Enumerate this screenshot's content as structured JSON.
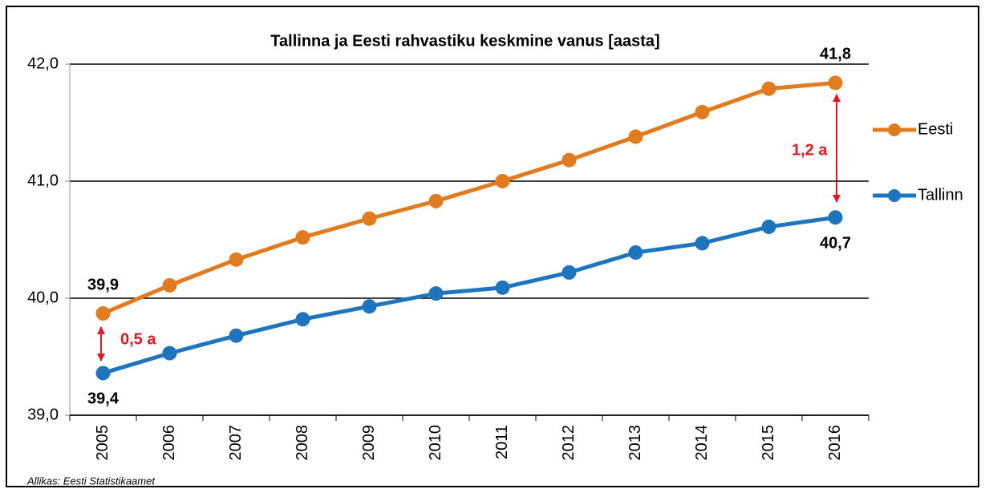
{
  "chart_data": {
    "type": "line",
    "title": "Tallinna ja Eesti rahvastiku keskmine vanus [aasta]",
    "categories": [
      "2005",
      "2006",
      "2007",
      "2008",
      "2009",
      "2010",
      "2011",
      "2012",
      "2013",
      "2014",
      "2015",
      "2016"
    ],
    "series": [
      {
        "name": "Eesti",
        "color": "#e07b1f",
        "values": [
          39.87,
          40.11,
          40.33,
          40.52,
          40.68,
          40.83,
          41.0,
          41.18,
          41.38,
          41.59,
          41.79,
          41.84
        ],
        "value_labels": [
          "39,9",
          null,
          null,
          null,
          null,
          null,
          null,
          null,
          null,
          null,
          null,
          "41,8"
        ]
      },
      {
        "name": "Tallinn",
        "color": "#1f75bd",
        "values": [
          39.36,
          39.53,
          39.68,
          39.82,
          39.93,
          40.04,
          40.09,
          40.22,
          40.39,
          40.47,
          40.61,
          40.69
        ],
        "value_labels": [
          "39,4",
          null,
          null,
          null,
          null,
          null,
          null,
          null,
          null,
          null,
          null,
          "40,7"
        ]
      }
    ],
    "ylim": [
      39,
      42
    ],
    "yticks": [
      {
        "value": 39,
        "label": "39,0"
      },
      {
        "value": 40,
        "label": "40,0"
      },
      {
        "value": 41,
        "label": "41,0"
      },
      {
        "value": 42,
        "label": "42,0"
      }
    ],
    "grid": true,
    "legend": "right",
    "annotations": [
      "0,5 a",
      "1,2 a"
    ],
    "source": "Allikas: Eesti Statistikaamet"
  }
}
